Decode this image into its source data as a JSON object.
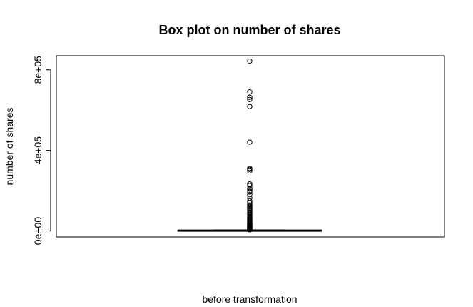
{
  "chart_data": {
    "type": "boxplot",
    "title": "Box plot on number of shares",
    "xlabel": "before transformation",
    "ylabel": "number of shares",
    "ylim": [
      -30000,
      870000
    ],
    "yticks": [
      0,
      400000,
      800000
    ],
    "ytick_labels": [
      "0e+00",
      "4e+05",
      "8e+05"
    ],
    "box": {
      "min": 1,
      "q1": 946,
      "median": 1400,
      "q3": 2800,
      "whisker_high": 5600
    },
    "outliers": [
      843300,
      690400,
      663600,
      652900,
      617900,
      441000,
      310800,
      306100,
      298400,
      233400,
      225200,
      210300,
      208300,
      197600,
      193400,
      180200,
      163000,
      148500,
      139600,
      128500,
      122800,
      118700,
      112600,
      109100,
      104100,
      98000,
      92100,
      86500,
      81200,
      76300,
      71800,
      67100,
      62800,
      58300,
      54100,
      50200,
      46600,
      43000,
      39800,
      36700,
      33900,
      31200,
      28700,
      26400,
      24100,
      22000,
      20000,
      18200,
      16500,
      14900,
      13400,
      12100,
      10900,
      9800,
      8800,
      7900,
      7100,
      6400,
      5900
    ]
  }
}
